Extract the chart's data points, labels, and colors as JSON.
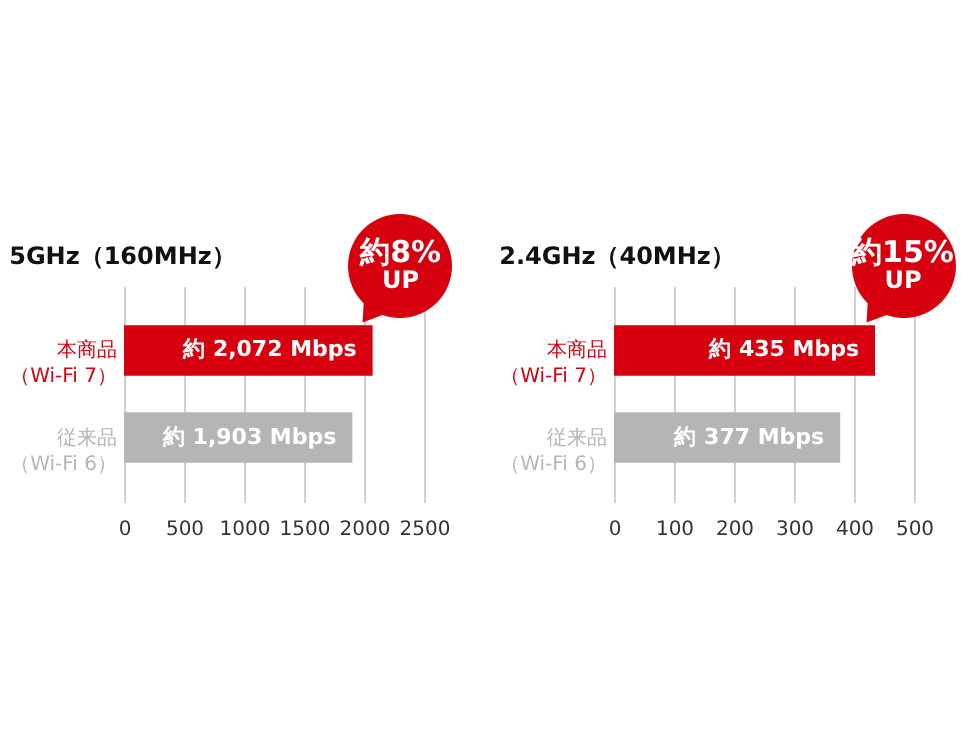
{
  "chart_data": [
    {
      "type": "bar",
      "orientation": "horizontal",
      "title": "5GHz（160MHz）",
      "categories": [
        "本商品（Wi-Fi 7）",
        "従来品（Wi-Fi 6）"
      ],
      "values": [
        2072,
        1903
      ],
      "colors": [
        "#d7000f",
        "#b5b5b5"
      ],
      "value_labels": [
        "約 2,072 Mbps",
        "約 1,903 Mbps"
      ],
      "xlim": [
        0,
        2500
      ],
      "xticks": [
        0,
        500,
        1000,
        1500,
        2000,
        2500
      ],
      "grid": "x",
      "annotations": [
        {
          "text": "約8%\nUP",
          "x": 2072,
          "y": "本商品（Wi-Fi 7）"
        }
      ]
    },
    {
      "type": "bar",
      "orientation": "horizontal",
      "title": "2.4GHz（40MHz）",
      "categories": [
        "本商品（Wi-Fi 7）",
        "従来品（Wi-Fi 6）"
      ],
      "values": [
        435,
        377
      ],
      "colors": [
        "#d7000f",
        "#b5b5b5"
      ],
      "value_labels": [
        "約 435 Mbps",
        "約 377 Mbps"
      ],
      "xlim": [
        0,
        500
      ],
      "xticks": [
        0,
        100,
        200,
        300,
        400,
        500
      ],
      "grid": "x",
      "annotations": [
        {
          "text": "約15%\nUP",
          "x": 435,
          "y": "本商品（Wi-Fi 7）"
        }
      ]
    }
  ]
}
